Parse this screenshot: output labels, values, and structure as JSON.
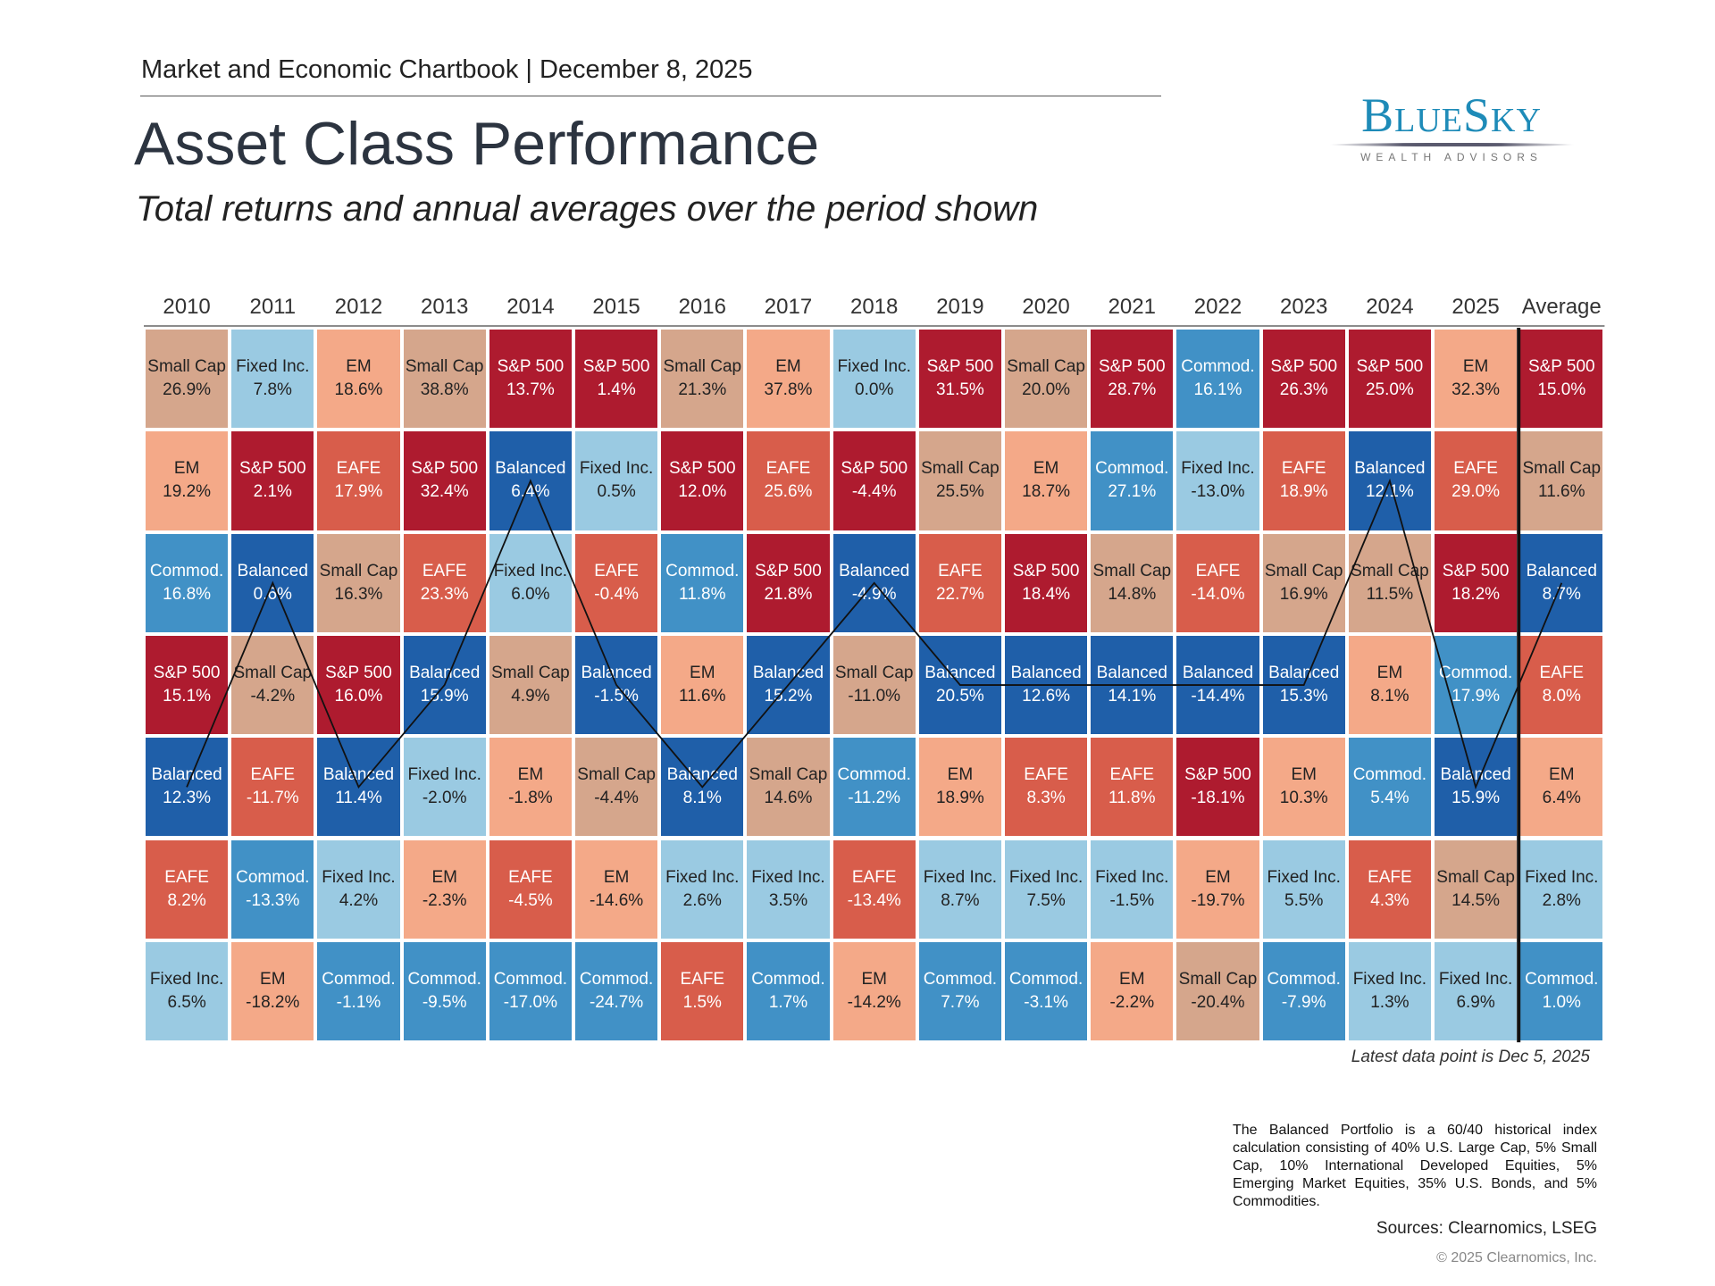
{
  "header": {
    "top_line": "Market and Economic Chartbook | December 8, 2025",
    "title": "Asset Class Performance",
    "subtitle": "Total returns and annual averages over the period shown"
  },
  "logo": {
    "name": "BlueSky",
    "tagline": "WEALTH ADVISORS"
  },
  "asset_colors": {
    "S&P 500": "#ae1b2f",
    "Small Cap": "#d5a68c",
    "EM": "#f4a988",
    "EAFE": "#d85d4b",
    "Fixed Inc.": "#9acae2",
    "Commod.": "#4191c6",
    "Balanced": "#1f5fa9"
  },
  "table": {
    "columns": [
      {
        "header": "2010",
        "cells": [
          [
            "Small Cap",
            "26.9%"
          ],
          [
            "EM",
            "19.2%"
          ],
          [
            "Commod.",
            "16.8%"
          ],
          [
            "S&P 500",
            "15.1%"
          ],
          [
            "Balanced",
            "12.3%"
          ],
          [
            "EAFE",
            "8.2%"
          ],
          [
            "Fixed Inc.",
            "6.5%"
          ]
        ]
      },
      {
        "header": "2011",
        "cells": [
          [
            "Fixed Inc.",
            "7.8%"
          ],
          [
            "S&P 500",
            "2.1%"
          ],
          [
            "Balanced",
            "0.6%"
          ],
          [
            "Small Cap",
            "-4.2%"
          ],
          [
            "EAFE",
            "-11.7%"
          ],
          [
            "Commod.",
            "-13.3%"
          ],
          [
            "EM",
            "-18.2%"
          ]
        ]
      },
      {
        "header": "2012",
        "cells": [
          [
            "EM",
            "18.6%"
          ],
          [
            "EAFE",
            "17.9%"
          ],
          [
            "Small Cap",
            "16.3%"
          ],
          [
            "S&P 500",
            "16.0%"
          ],
          [
            "Balanced",
            "11.4%"
          ],
          [
            "Fixed Inc.",
            "4.2%"
          ],
          [
            "Commod.",
            "-1.1%"
          ]
        ]
      },
      {
        "header": "2013",
        "cells": [
          [
            "Small Cap",
            "38.8%"
          ],
          [
            "S&P 500",
            "32.4%"
          ],
          [
            "EAFE",
            "23.3%"
          ],
          [
            "Balanced",
            "15.9%"
          ],
          [
            "Fixed Inc.",
            "-2.0%"
          ],
          [
            "EM",
            "-2.3%"
          ],
          [
            "Commod.",
            "-9.5%"
          ]
        ]
      },
      {
        "header": "2014",
        "cells": [
          [
            "S&P 500",
            "13.7%"
          ],
          [
            "Balanced",
            "6.4%"
          ],
          [
            "Fixed Inc.",
            "6.0%"
          ],
          [
            "Small Cap",
            "4.9%"
          ],
          [
            "EM",
            "-1.8%"
          ],
          [
            "EAFE",
            "-4.5%"
          ],
          [
            "Commod.",
            "-17.0%"
          ]
        ]
      },
      {
        "header": "2015",
        "cells": [
          [
            "S&P 500",
            "1.4%"
          ],
          [
            "Fixed Inc.",
            "0.5%"
          ],
          [
            "EAFE",
            "-0.4%"
          ],
          [
            "Balanced",
            "-1.5%"
          ],
          [
            "Small Cap",
            "-4.4%"
          ],
          [
            "EM",
            "-14.6%"
          ],
          [
            "Commod.",
            "-24.7%"
          ]
        ]
      },
      {
        "header": "2016",
        "cells": [
          [
            "Small Cap",
            "21.3%"
          ],
          [
            "S&P 500",
            "12.0%"
          ],
          [
            "Commod.",
            "11.8%"
          ],
          [
            "EM",
            "11.6%"
          ],
          [
            "Balanced",
            "8.1%"
          ],
          [
            "Fixed Inc.",
            "2.6%"
          ],
          [
            "EAFE",
            "1.5%"
          ]
        ]
      },
      {
        "header": "2017",
        "cells": [
          [
            "EM",
            "37.8%"
          ],
          [
            "EAFE",
            "25.6%"
          ],
          [
            "S&P 500",
            "21.8%"
          ],
          [
            "Balanced",
            "15.2%"
          ],
          [
            "Small Cap",
            "14.6%"
          ],
          [
            "Fixed Inc.",
            "3.5%"
          ],
          [
            "Commod.",
            "1.7%"
          ]
        ]
      },
      {
        "header": "2018",
        "cells": [
          [
            "Fixed Inc.",
            "0.0%"
          ],
          [
            "S&P 500",
            "-4.4%"
          ],
          [
            "Balanced",
            "-4.9%"
          ],
          [
            "Small Cap",
            "-11.0%"
          ],
          [
            "Commod.",
            "-11.2%"
          ],
          [
            "EAFE",
            "-13.4%"
          ],
          [
            "EM",
            "-14.2%"
          ]
        ]
      },
      {
        "header": "2019",
        "cells": [
          [
            "S&P 500",
            "31.5%"
          ],
          [
            "Small Cap",
            "25.5%"
          ],
          [
            "EAFE",
            "22.7%"
          ],
          [
            "Balanced",
            "20.5%"
          ],
          [
            "EM",
            "18.9%"
          ],
          [
            "Fixed Inc.",
            "8.7%"
          ],
          [
            "Commod.",
            "7.7%"
          ]
        ]
      },
      {
        "header": "2020",
        "cells": [
          [
            "Small Cap",
            "20.0%"
          ],
          [
            "EM",
            "18.7%"
          ],
          [
            "S&P 500",
            "18.4%"
          ],
          [
            "Balanced",
            "12.6%"
          ],
          [
            "EAFE",
            "8.3%"
          ],
          [
            "Fixed Inc.",
            "7.5%"
          ],
          [
            "Commod.",
            "-3.1%"
          ]
        ]
      },
      {
        "header": "2021",
        "cells": [
          [
            "S&P 500",
            "28.7%"
          ],
          [
            "Commod.",
            "27.1%"
          ],
          [
            "Small Cap",
            "14.8%"
          ],
          [
            "Balanced",
            "14.1%"
          ],
          [
            "EAFE",
            "11.8%"
          ],
          [
            "Fixed Inc.",
            "-1.5%"
          ],
          [
            "EM",
            "-2.2%"
          ]
        ]
      },
      {
        "header": "2022",
        "cells": [
          [
            "Commod.",
            "16.1%"
          ],
          [
            "Fixed Inc.",
            "-13.0%"
          ],
          [
            "EAFE",
            "-14.0%"
          ],
          [
            "Balanced",
            "-14.4%"
          ],
          [
            "S&P 500",
            "-18.1%"
          ],
          [
            "EM",
            "-19.7%"
          ],
          [
            "Small Cap",
            "-20.4%"
          ]
        ]
      },
      {
        "header": "2023",
        "cells": [
          [
            "S&P 500",
            "26.3%"
          ],
          [
            "EAFE",
            "18.9%"
          ],
          [
            "Small Cap",
            "16.9%"
          ],
          [
            "Balanced",
            "15.3%"
          ],
          [
            "EM",
            "10.3%"
          ],
          [
            "Fixed Inc.",
            "5.5%"
          ],
          [
            "Commod.",
            "-7.9%"
          ]
        ]
      },
      {
        "header": "2024",
        "cells": [
          [
            "S&P 500",
            "25.0%"
          ],
          [
            "Balanced",
            "12.1%"
          ],
          [
            "Small Cap",
            "11.5%"
          ],
          [
            "EM",
            "8.1%"
          ],
          [
            "Commod.",
            "5.4%"
          ],
          [
            "EAFE",
            "4.3%"
          ],
          [
            "Fixed Inc.",
            "1.3%"
          ]
        ]
      },
      {
        "header": "2025",
        "cells": [
          [
            "EM",
            "32.3%"
          ],
          [
            "EAFE",
            "29.0%"
          ],
          [
            "S&P 500",
            "18.2%"
          ],
          [
            "Commod.",
            "17.9%"
          ],
          [
            "Balanced",
            "15.9%"
          ],
          [
            "Small Cap",
            "14.5%"
          ],
          [
            "Fixed Inc.",
            "6.9%"
          ]
        ]
      },
      {
        "header": "Average",
        "cells": [
          [
            "S&P 500",
            "15.0%"
          ],
          [
            "Small Cap",
            "11.6%"
          ],
          [
            "Balanced",
            "8.7%"
          ],
          [
            "EAFE",
            "8.0%"
          ],
          [
            "EM",
            "6.4%"
          ],
          [
            "Fixed Inc.",
            "2.8%"
          ],
          [
            "Commod.",
            "1.0%"
          ]
        ]
      }
    ]
  },
  "notes": {
    "latest": "Latest data point is Dec 5, 2025",
    "footnote": "The Balanced Portfolio is a 60/40 historical index calculation consisting of 40% U.S. Large Cap, 5% Small Cap, 10% International Developed Equities, 5% Emerging Market Equities, 35% U.S. Bonds, and 5% Commodities.",
    "sources": "Sources: Clearnomics, LSEG",
    "copyright": "© 2025 Clearnomics, Inc."
  }
}
